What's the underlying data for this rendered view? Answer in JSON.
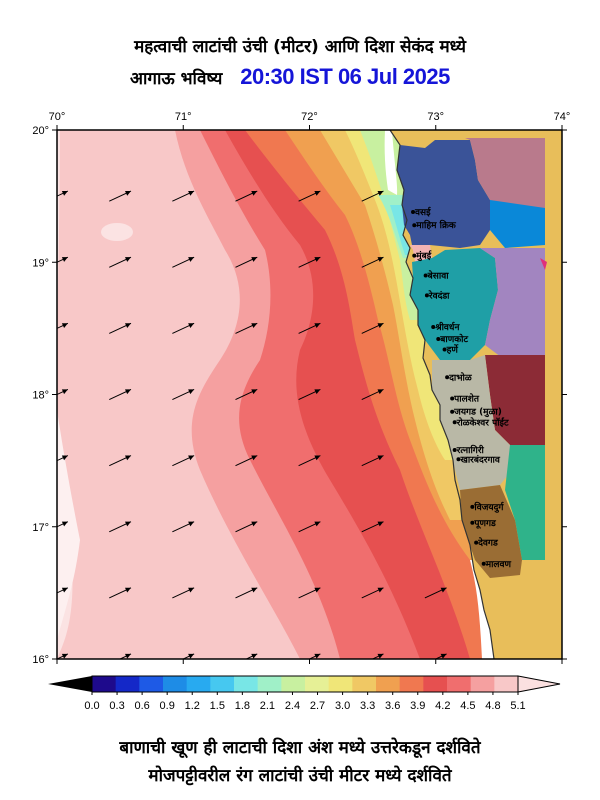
{
  "title": {
    "line1": "महत्वाची लाटांची उंची (मीटर) आणि दिशा सेकंद मध्ये",
    "line2_prefix": "आगाऊ भविष्य",
    "forecast_time": "20:30 IST 06 Jul 2025"
  },
  "axes": {
    "lon_labels": [
      "70°",
      "71°",
      "72°",
      "73°",
      "74°"
    ],
    "lat_labels": [
      "20°",
      "19°",
      "18°",
      "17°",
      "16°"
    ]
  },
  "places": [
    {
      "name": "वसई",
      "lon": 72.82,
      "lat": 19.38
    },
    {
      "name": "माहिम क्रिक",
      "lon": 72.83,
      "lat": 19.28
    },
    {
      "name": "मुंबई",
      "lon": 72.83,
      "lat": 19.05
    },
    {
      "name": "बेसावा",
      "lon": 72.92,
      "lat": 18.9
    },
    {
      "name": "रेवदंडा",
      "lon": 72.93,
      "lat": 18.75
    },
    {
      "name": "श्रीवर्धन",
      "lon": 72.98,
      "lat": 18.51
    },
    {
      "name": "बाणकोट",
      "lon": 73.02,
      "lat": 18.42
    },
    {
      "name": "हर्णे",
      "lon": 73.07,
      "lat": 18.34
    },
    {
      "name": "दाभोळ",
      "lon": 73.09,
      "lat": 18.13
    },
    {
      "name": "पालशेत",
      "lon": 73.13,
      "lat": 17.97
    },
    {
      "name": "जयगड (मुळा)",
      "lon": 73.13,
      "lat": 17.87
    },
    {
      "name": "रोळकेश्वर पॉईंट",
      "lon": 73.15,
      "lat": 17.79
    },
    {
      "name": "रत्नागिरी",
      "lon": 73.15,
      "lat": 17.58
    },
    {
      "name": "खारबंदरगाव",
      "lon": 73.18,
      "lat": 17.51
    },
    {
      "name": "विजयदुर्ग",
      "lon": 73.29,
      "lat": 17.15
    },
    {
      "name": "पूणगड",
      "lon": 73.29,
      "lat": 17.03
    },
    {
      "name": "देवगड",
      "lon": 73.32,
      "lat": 16.88
    },
    {
      "name": "मालवण",
      "lon": 73.38,
      "lat": 16.72
    }
  ],
  "colorbar": {
    "labels": [
      "0.0",
      "0.3",
      "0.6",
      "0.9",
      "1.2",
      "1.5",
      "1.8",
      "2.1",
      "2.4",
      "2.7",
      "3.0",
      "3.3",
      "3.6",
      "3.9",
      "4.2",
      "4.5",
      "4.8",
      "5.1"
    ],
    "colors": [
      "#1e0a8c",
      "#1428c8",
      "#1e5ae6",
      "#1e8ce6",
      "#28aaf0",
      "#46c8f0",
      "#78e6e6",
      "#a0f0c8",
      "#c8f0a0",
      "#e6f096",
      "#f0e678",
      "#f0c864",
      "#f0a050",
      "#f07850",
      "#e65050",
      "#f06e6e",
      "#f5a0a0",
      "#f8c8c8",
      "#fbe0e0"
    ]
  },
  "captions": {
    "line1": "बाणाची खूण ही लाटाची दिशा अंश मध्ये उत्तरेकडून दर्शविते",
    "line2": "मोजपट्टीवरील रंग लाटांची उंची मीटर मध्ये दर्शविते"
  },
  "arrows": {
    "lons": [
      70.0,
      70.5,
      71.0,
      71.5,
      72.0,
      72.5,
      73.0
    ],
    "lats": [
      19.5,
      19.0,
      18.5,
      18.0,
      17.5,
      17.0,
      16.5,
      16.0
    ],
    "direction_deg_from_north": 245
  },
  "map_extent": {
    "lon_min": 70,
    "lon_max": 74,
    "lat_min": 16,
    "lat_max": 20
  }
}
